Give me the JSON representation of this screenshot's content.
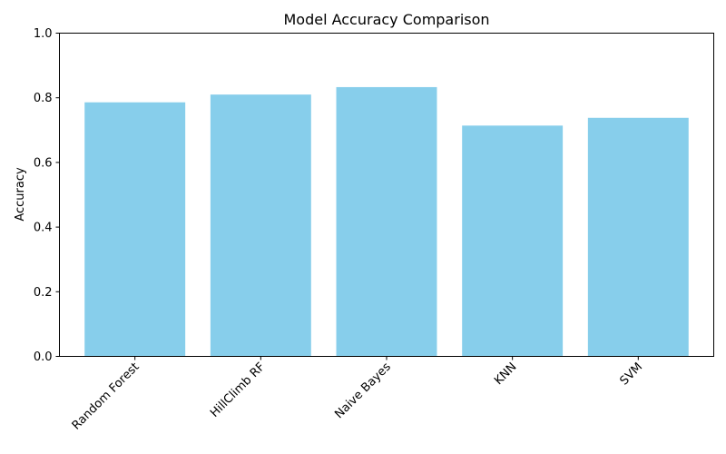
{
  "chart_data": {
    "type": "bar",
    "title": "Model Accuracy Comparison",
    "xlabel": "",
    "ylabel": "Accuracy",
    "categories": [
      "Random Forest",
      "HillClimb RF",
      "Naive Bayes",
      "KNN",
      "SVM"
    ],
    "values": [
      0.786,
      0.81,
      0.833,
      0.714,
      0.738
    ],
    "ylim": [
      0,
      1.0
    ],
    "yticks": [
      "0.0",
      "0.2",
      "0.4",
      "0.6",
      "0.8",
      "1.0"
    ],
    "grid": false,
    "bar_color": "#87CEEB",
    "xtick_rotation_deg": 45
  }
}
